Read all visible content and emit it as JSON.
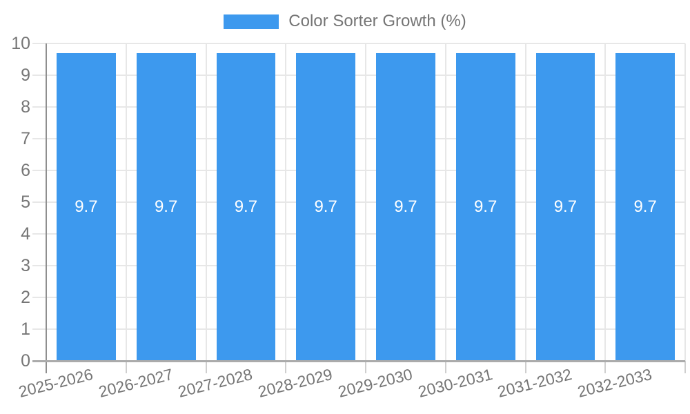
{
  "chart_data": {
    "type": "bar",
    "legend": {
      "label": "Color Sorter Growth (%)",
      "position": "top"
    },
    "categories": [
      "2025-2026",
      "2026-2027",
      "2027-2028",
      "2028-2029",
      "2029-2030",
      "2030-2031",
      "2031-2032",
      "2032-2033"
    ],
    "series": [
      {
        "name": "Color Sorter Growth (%)",
        "values": [
          9.7,
          9.7,
          9.7,
          9.7,
          9.7,
          9.7,
          9.7,
          9.7
        ]
      }
    ],
    "values_display": [
      "9.7",
      "9.7",
      "9.7",
      "9.7",
      "9.7",
      "9.7",
      "9.7",
      "9.7"
    ],
    "ylim": [
      0,
      10
    ],
    "yticks": [
      0,
      1,
      2,
      3,
      4,
      5,
      6,
      7,
      8,
      9,
      10
    ],
    "xlabel": "",
    "ylabel": "",
    "grid": "on",
    "colors": {
      "bar": "#3D99EE",
      "grid": "#E7E7E7",
      "y_axis_line": "#8F8F8F",
      "x_axis_line": "#ABABAB",
      "tick": "#CFCFCF",
      "axis_text": "#757575",
      "bar_label": "#FFFFFF",
      "legend_text": "#757575",
      "background": "#FFFFFF"
    }
  }
}
